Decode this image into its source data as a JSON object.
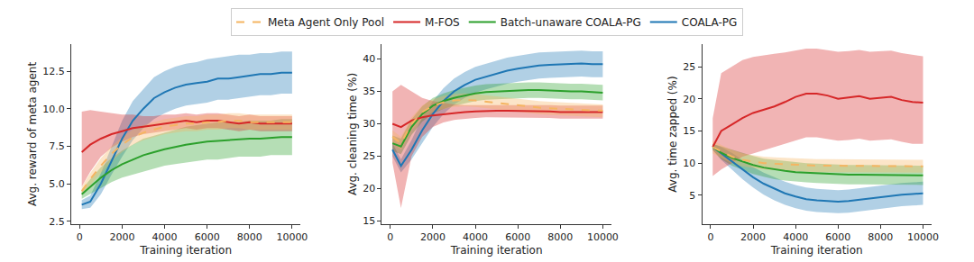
{
  "chart_data": [
    {
      "type": "line",
      "legend": "top",
      "grid": false,
      "x_label": "Training iteration",
      "y_label": "Avg. reward of meta agent",
      "x": [
        100,
        500,
        1000,
        1500,
        2000,
        2500,
        3000,
        3500,
        4000,
        4500,
        5000,
        5500,
        6000,
        6500,
        7000,
        7500,
        8000,
        8500,
        9000,
        9500,
        10000
      ],
      "xlim": [
        -400,
        10400
      ],
      "xticks": [
        0,
        2000,
        4000,
        6000,
        8000,
        10000
      ],
      "ylim": [
        2.3,
        14.3
      ],
      "yticks": [
        2.5,
        {
          "value": 5,
          "label": "5.0"
        },
        7.5,
        {
          "value": 10,
          "label": "10.0"
        },
        12.5
      ],
      "series": [
        {
          "name": "COALA-PG",
          "color": "#1f77b4",
          "line_style": "solid",
          "values": [
            3.6,
            3.8,
            5.0,
            6.5,
            8.0,
            9.2,
            10.0,
            10.7,
            11.1,
            11.4,
            11.6,
            11.7,
            11.8,
            12.0,
            12.0,
            12.1,
            12.2,
            12.3,
            12.3,
            12.4,
            12.4
          ],
          "lower": [
            3.3,
            3.4,
            4.3,
            5.6,
            6.8,
            7.9,
            8.7,
            9.3,
            9.7,
            10.0,
            10.2,
            10.3,
            10.4,
            10.6,
            10.6,
            10.7,
            10.8,
            10.9,
            10.9,
            11.0,
            11.0
          ],
          "upper": [
            3.9,
            4.2,
            5.7,
            7.4,
            9.2,
            10.5,
            11.3,
            12.1,
            12.5,
            12.8,
            13.0,
            13.1,
            13.3,
            13.4,
            13.5,
            13.6,
            13.6,
            13.7,
            13.7,
            13.8,
            13.8
          ]
        },
        {
          "name": "Batch-unaware COALA-PG",
          "color": "#2ca02c",
          "line_style": "solid",
          "values": [
            4.3,
            4.8,
            5.4,
            5.9,
            6.3,
            6.6,
            6.9,
            7.1,
            7.3,
            7.45,
            7.6,
            7.7,
            7.8,
            7.85,
            7.9,
            7.95,
            8.0,
            8.0,
            8.05,
            8.1,
            8.1
          ],
          "lower": [
            4.0,
            4.3,
            4.7,
            5.1,
            5.4,
            5.6,
            5.8,
            6.0,
            6.2,
            6.3,
            6.4,
            6.5,
            6.6,
            6.6,
            6.7,
            6.8,
            6.8,
            6.8,
            6.9,
            6.9,
            6.9
          ],
          "upper": [
            4.6,
            5.3,
            6.1,
            6.7,
            7.2,
            7.6,
            8.0,
            8.2,
            8.4,
            8.6,
            8.8,
            8.9,
            9.0,
            9.1,
            9.1,
            9.1,
            9.2,
            9.2,
            9.2,
            9.3,
            9.3
          ]
        },
        {
          "name": "M-FOS",
          "color": "#d62728",
          "line_style": "solid",
          "values": [
            7.1,
            7.6,
            8.0,
            8.3,
            8.5,
            8.7,
            8.8,
            8.9,
            9.0,
            9.1,
            9.2,
            9.1,
            9.2,
            9.2,
            9.1,
            9.0,
            9.1,
            9.0,
            9.0,
            9.0,
            9.0
          ],
          "lower": [
            4.8,
            5.8,
            6.8,
            7.4,
            7.8,
            8.1,
            8.3,
            8.4,
            8.5,
            8.6,
            8.7,
            8.6,
            8.7,
            8.7,
            8.6,
            8.5,
            8.6,
            8.5,
            8.5,
            8.5,
            8.5
          ],
          "upper": [
            9.8,
            9.9,
            9.8,
            9.7,
            9.6,
            9.6,
            9.5,
            9.5,
            9.6,
            9.6,
            9.7,
            9.6,
            9.7,
            9.7,
            9.6,
            9.5,
            9.6,
            9.5,
            9.5,
            9.5,
            9.5
          ]
        },
        {
          "name": "Meta Agent Only Pool",
          "color": "#f5b562",
          "line_style": "dash",
          "values": [
            4.5,
            5.3,
            6.2,
            7.0,
            7.6,
            8.1,
            8.4,
            8.6,
            8.8,
            8.9,
            9.0,
            9.0,
            9.1,
            9.1,
            9.2,
            9.2,
            9.1,
            9.1,
            9.1,
            9.1,
            9.1
          ],
          "lower": [
            4.2,
            4.9,
            5.7,
            6.5,
            7.1,
            7.6,
            7.9,
            8.1,
            8.3,
            8.4,
            8.5,
            8.5,
            8.6,
            8.6,
            8.7,
            8.7,
            8.6,
            8.6,
            8.6,
            8.6,
            8.6
          ],
          "upper": [
            4.8,
            5.7,
            6.7,
            7.5,
            8.1,
            8.6,
            8.9,
            9.1,
            9.3,
            9.4,
            9.5,
            9.5,
            9.6,
            9.6,
            9.7,
            9.7,
            9.6,
            9.6,
            9.6,
            9.6,
            9.6
          ]
        }
      ]
    },
    {
      "type": "line",
      "grid": false,
      "x_label": "Training iteration",
      "y_label": "Avg. cleaning time (%)",
      "x": [
        100,
        500,
        1000,
        1500,
        2000,
        2500,
        3000,
        3500,
        4000,
        4500,
        5000,
        5500,
        6000,
        6500,
        7000,
        7500,
        8000,
        8500,
        9000,
        9500,
        10000
      ],
      "xlim": [
        -400,
        10400
      ],
      "xticks": [
        0,
        2000,
        4000,
        6000,
        8000,
        10000
      ],
      "ylim": [
        14.5,
        42.3
      ],
      "yticks": [
        15,
        20,
        25,
        30,
        35,
        40
      ],
      "series": [
        {
          "name": "COALA-PG",
          "color": "#1f77b4",
          "line_style": "solid",
          "values": [
            26,
            23.5,
            26,
            29,
            31.5,
            33.5,
            35,
            36,
            36.8,
            37.3,
            37.8,
            38.2,
            38.5,
            38.8,
            39,
            39.1,
            39.2,
            39.2,
            39.3,
            39.2,
            39.2
          ],
          "lower": [
            25,
            22.5,
            24.5,
            27,
            29.5,
            31.5,
            33,
            34,
            34.8,
            35.3,
            35.8,
            36.2,
            36.5,
            36.8,
            37,
            37.1,
            37.2,
            37.2,
            37.3,
            37.2,
            37.2
          ],
          "upper": [
            27,
            24.5,
            27.5,
            31,
            33.5,
            35.5,
            37,
            38,
            38.8,
            39.3,
            39.8,
            40.2,
            40.5,
            40.8,
            41,
            41.1,
            41.2,
            41.2,
            41.3,
            41.2,
            41.2
          ]
        },
        {
          "name": "Batch-unaware COALA-PG",
          "color": "#2ca02c",
          "line_style": "solid",
          "values": [
            27,
            26.5,
            29.5,
            31.5,
            32.8,
            33.5,
            34,
            34.4,
            34.7,
            34.9,
            35,
            35.1,
            35.2,
            35.2,
            35.2,
            35.1,
            35.1,
            35,
            35,
            34.9,
            34.8
          ],
          "lower": [
            25.8,
            25.3,
            28.3,
            30.3,
            31.6,
            32.3,
            32.8,
            33.2,
            33.5,
            33.7,
            33.8,
            33.9,
            34,
            34,
            34,
            33.9,
            33.9,
            33.8,
            33.8,
            33.7,
            33.6
          ],
          "upper": [
            28.2,
            27.7,
            30.7,
            32.7,
            34,
            34.7,
            35.2,
            35.6,
            35.9,
            36.1,
            36.2,
            36.3,
            36.4,
            36.4,
            36.4,
            36.3,
            36.3,
            36.2,
            36.2,
            36.1,
            36
          ]
        },
        {
          "name": "M-FOS",
          "color": "#d62728",
          "line_style": "solid",
          "values": [
            30,
            29.5,
            30.5,
            31,
            31.3,
            31.5,
            31.7,
            31.8,
            31.9,
            32,
            32,
            32,
            32,
            31.9,
            31.9,
            31.9,
            31.8,
            31.8,
            31.8,
            31.8,
            31.8
          ],
          "lower": [
            24,
            17,
            25,
            28,
            29.5,
            30.2,
            30.6,
            30.8,
            30.9,
            31,
            31,
            31,
            31,
            30.9,
            30.9,
            30.9,
            30.8,
            30.8,
            30.8,
            30.8,
            30.8
          ],
          "upper": [
            35,
            36,
            35,
            34,
            33.5,
            33.2,
            33,
            32.9,
            32.9,
            33,
            33,
            33,
            33,
            32.9,
            32.9,
            32.9,
            32.8,
            32.8,
            32.8,
            32.8,
            32.8
          ]
        },
        {
          "name": "Meta Agent Only Pool",
          "color": "#f5b562",
          "line_style": "dash",
          "values": [
            28,
            27,
            30,
            31.8,
            32.8,
            33.3,
            33.6,
            33.7,
            33.6,
            33.4,
            33.2,
            33,
            32.8,
            32.6,
            32.5,
            32.4,
            32.3,
            32.2,
            32.2,
            32.1,
            32
          ],
          "lower": [
            27,
            26,
            29,
            30.8,
            31.8,
            32.3,
            32.6,
            32.7,
            32.6,
            32.4,
            32.2,
            32,
            31.8,
            31.6,
            31.5,
            31.4,
            31.3,
            31.2,
            31.2,
            31.1,
            31
          ],
          "upper": [
            29,
            28,
            31,
            32.8,
            33.8,
            34.3,
            34.6,
            34.7,
            34.6,
            34.4,
            34.2,
            34,
            33.8,
            33.6,
            33.5,
            33.4,
            33.3,
            33.2,
            33.2,
            33.1,
            33
          ]
        }
      ]
    },
    {
      "type": "line",
      "grid": false,
      "x_label": "Training iteration",
      "y_label": "Avg. time zapped (%)",
      "x": [
        100,
        500,
        1000,
        1500,
        2000,
        2500,
        3000,
        3500,
        4000,
        4500,
        5000,
        5500,
        6000,
        6500,
        7000,
        7500,
        8000,
        8500,
        9000,
        9500,
        10000
      ],
      "xlim": [
        -400,
        10400
      ],
      "xticks": [
        0,
        2000,
        4000,
        6000,
        8000,
        10000
      ],
      "ylim": [
        0.5,
        28.5
      ],
      "yticks": [
        5,
        10,
        15,
        20,
        25
      ],
      "series": [
        {
          "name": "COALA-PG",
          "color": "#1f77b4",
          "line_style": "solid",
          "values": [
            12.5,
            11.5,
            10.3,
            9,
            7.8,
            6.8,
            6,
            5.3,
            4.8,
            4.4,
            4.2,
            4.1,
            4,
            4.1,
            4.3,
            4.5,
            4.8,
            5,
            5.1,
            5.2,
            5.3
          ],
          "lower": [
            12,
            10.5,
            9,
            7.5,
            6.2,
            5.1,
            4.2,
            3.5,
            3,
            2.6,
            2.4,
            2.3,
            2.2,
            2.3,
            2.5,
            2.7,
            3,
            3.2,
            3.3,
            3.4,
            3.5
          ],
          "upper": [
            13,
            12.5,
            11.6,
            10.5,
            9.4,
            8.5,
            7.8,
            7.1,
            6.6,
            6.2,
            6,
            5.9,
            5.8,
            5.9,
            6.1,
            6.3,
            6.6,
            6.8,
            6.9,
            7,
            7.1
          ]
        },
        {
          "name": "Batch-unaware COALA-PG",
          "color": "#2ca02c",
          "line_style": "solid",
          "values": [
            12.5,
            11.6,
            10.8,
            10.2,
            9.7,
            9.3,
            9,
            8.8,
            8.6,
            8.5,
            8.4,
            8.3,
            8.3,
            8.2,
            8.2,
            8.2,
            8.1,
            8.1,
            8.1,
            8.1,
            8.1
          ],
          "lower": [
            12,
            10.6,
            9.6,
            8.9,
            8.3,
            7.9,
            7.5,
            7.3,
            7.1,
            7,
            6.9,
            6.8,
            6.8,
            6.7,
            6.7,
            6.7,
            6.6,
            6.6,
            6.6,
            6.6,
            6.6
          ],
          "upper": [
            13,
            12.6,
            12,
            11.5,
            11.1,
            10.7,
            10.5,
            10.3,
            10.1,
            10,
            9.9,
            9.8,
            9.8,
            9.7,
            9.7,
            9.7,
            9.6,
            9.6,
            9.6,
            9.6,
            9.6
          ]
        },
        {
          "name": "M-FOS",
          "color": "#d62728",
          "line_style": "solid",
          "values": [
            12.5,
            15,
            16,
            17,
            17.8,
            18.3,
            18.8,
            19.5,
            20.3,
            20.8,
            20.8,
            20.5,
            20,
            20.2,
            20.4,
            20,
            20.1,
            20.3,
            19.8,
            19.5,
            19.4
          ],
          "lower": [
            8,
            9,
            10,
            11,
            11.5,
            12,
            12.5,
            13,
            13.5,
            14,
            14,
            13.8,
            13.5,
            13.6,
            13.8,
            13.5,
            13.6,
            13.7,
            13.3,
            13,
            13
          ],
          "upper": [
            17,
            24,
            25,
            26,
            26.5,
            26.8,
            27,
            27.2,
            27.5,
            27.8,
            27.8,
            27.6,
            27.3,
            27.4,
            27.6,
            27.3,
            27.4,
            27.5,
            27.1,
            26.8,
            26.6
          ]
        },
        {
          "name": "Meta Agent Only Pool",
          "color": "#f5b562",
          "line_style": "dash",
          "values": [
            12.5,
            11.8,
            11,
            10.5,
            10.2,
            10,
            9.9,
            9.8,
            9.7,
            9.7,
            9.6,
            9.6,
            9.6,
            9.6,
            9.6,
            9.5,
            9.5,
            9.5,
            9.5,
            9.5,
            9.5
          ],
          "lower": [
            11.5,
            10.8,
            10,
            9.5,
            9.2,
            9,
            8.9,
            8.8,
            8.7,
            8.7,
            8.6,
            8.6,
            8.6,
            8.6,
            8.6,
            8.5,
            8.5,
            8.5,
            8.5,
            8.5,
            8.5
          ],
          "upper": [
            13.5,
            12.8,
            12,
            11.5,
            11.2,
            11,
            10.9,
            10.8,
            10.7,
            10.7,
            10.6,
            10.6,
            10.6,
            10.6,
            10.6,
            10.5,
            10.5,
            10.5,
            10.5,
            10.5,
            10.5
          ]
        }
      ]
    }
  ]
}
